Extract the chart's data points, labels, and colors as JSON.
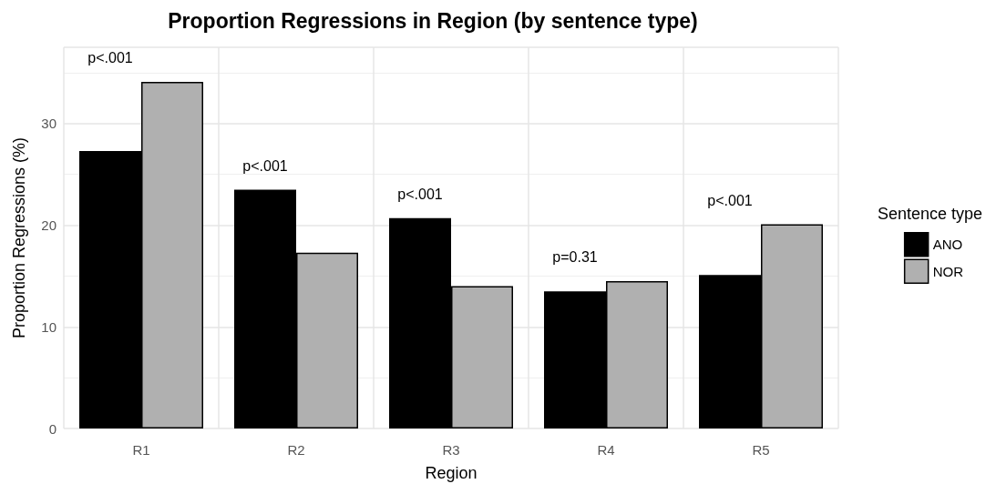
{
  "chart_data": {
    "type": "bar",
    "title": "Proportion Regressions in Region (by sentence type)",
    "xlabel": "Region",
    "ylabel": "Proportion Regressions (%)",
    "legend_title": "Sentence type",
    "categories": [
      "R1",
      "R2",
      "R3",
      "R4",
      "R5"
    ],
    "series": [
      {
        "name": "ANO",
        "color": "#000000",
        "values": [
          27.3,
          23.5,
          20.7,
          13.5,
          15.1
        ]
      },
      {
        "name": "NOR",
        "color": "#b0b0b0",
        "values": [
          34.1,
          17.3,
          14.0,
          14.5,
          20.1
        ]
      }
    ],
    "ylim": [
      0,
      37.5
    ],
    "yticks": [
      0,
      10,
      20,
      30
    ],
    "grid": true,
    "legend": "right",
    "annotations": [
      "p<.001",
      "p<.001",
      "p<.001",
      "p=0.31",
      "p<.001"
    ]
  }
}
